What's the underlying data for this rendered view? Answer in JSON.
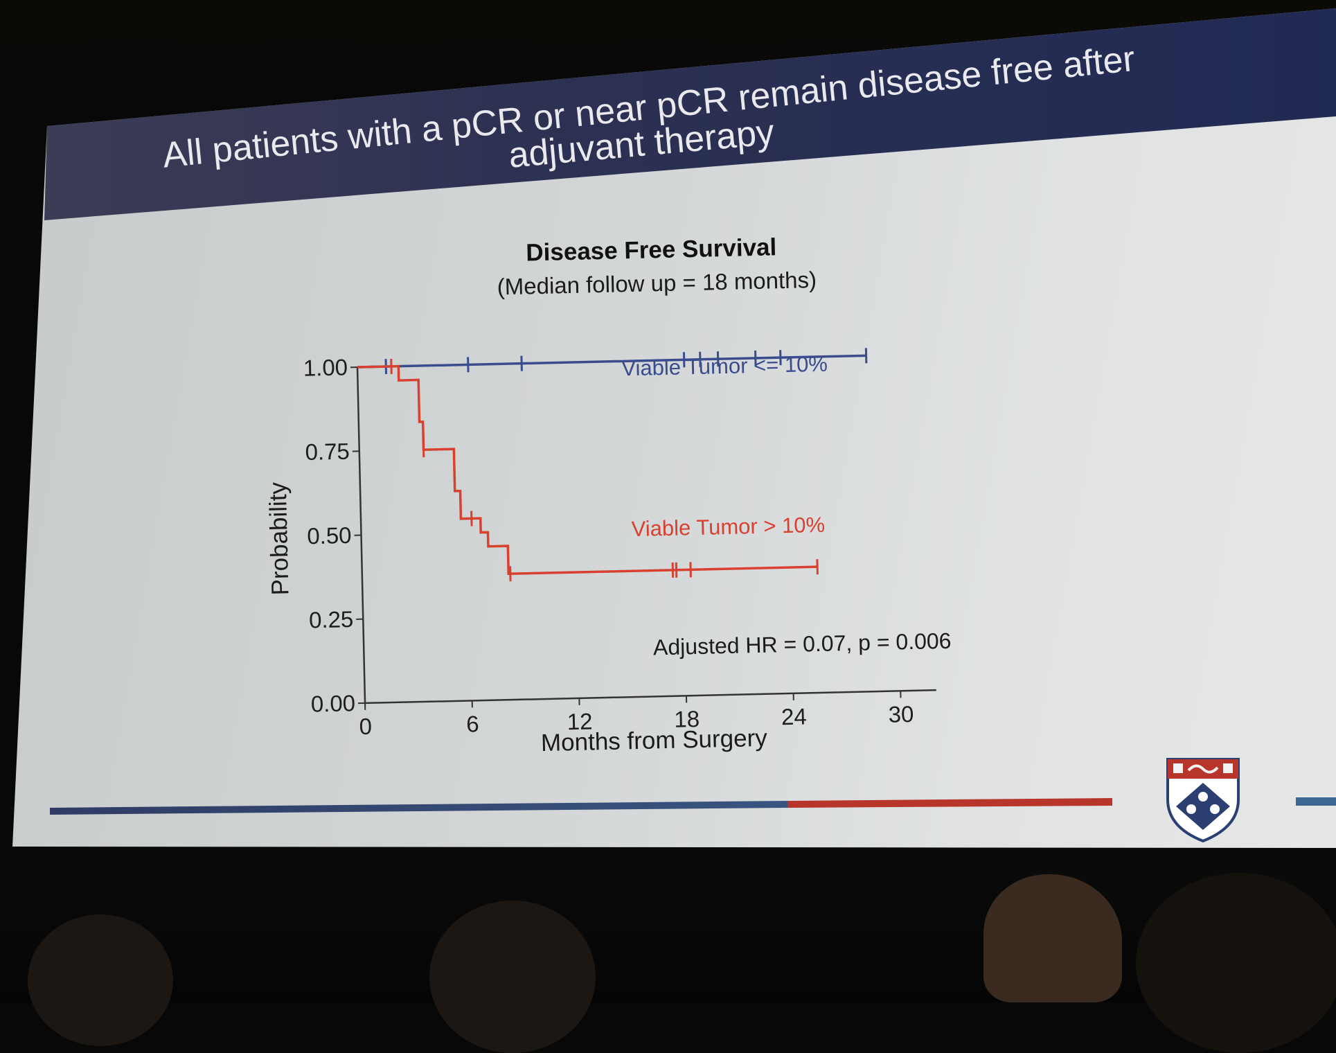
{
  "slide": {
    "title_line1": "All patients with a pCR or near pCR remain disease free after",
    "title_line2": "adjuvant therapy"
  },
  "colors": {
    "title_band": "#27305a",
    "series_low": "#3a4c8e",
    "series_high": "#d8402f",
    "accent_blue": "#3f6793",
    "accent_red": "#b8352c"
  },
  "logo": {
    "icon": "university-shield-icon"
  },
  "chart_data": {
    "type": "line",
    "subtype": "kaplan-meier",
    "title": "Disease Free Survival",
    "subtitle": "(Median follow up = 18 months)",
    "xlabel": "Months from Surgery",
    "ylabel": "Probability",
    "xlim": [
      0,
      32
    ],
    "ylim": [
      0,
      1
    ],
    "x_ticks": [
      0,
      6,
      12,
      18,
      24,
      30
    ],
    "x_tick_labels": [
      "0",
      "6",
      "12",
      "18",
      "24",
      "30"
    ],
    "y_ticks": [
      0,
      0.25,
      0.5,
      0.75,
      1
    ],
    "y_tick_labels": [
      "0.00",
      "0.25",
      "0.50",
      "0.75",
      "1.00"
    ],
    "grid": false,
    "annotation": "Adjusted HR = 0.07,  p = 0.006",
    "series": [
      {
        "name": "Viable Tumor <= 10%",
        "color": "#3a4c8e",
        "steps": [
          [
            0,
            1.0
          ],
          [
            28.5,
            1.0
          ]
        ],
        "censored": [
          1.6,
          6.2,
          9.2,
          18.3,
          19.2,
          20.2,
          22.3,
          23.7,
          28.5
        ]
      },
      {
        "name": "Viable Tumor > 10%",
        "color": "#d8402f",
        "steps": [
          [
            0,
            1.0
          ],
          [
            2.3,
            1.0
          ],
          [
            2.3,
            0.958
          ],
          [
            3.4,
            0.958
          ],
          [
            3.4,
            0.833
          ],
          [
            3.6,
            0.833
          ],
          [
            3.6,
            0.75
          ],
          [
            5.3,
            0.75
          ],
          [
            5.3,
            0.625
          ],
          [
            5.6,
            0.625
          ],
          [
            5.6,
            0.542
          ],
          [
            6.7,
            0.542
          ],
          [
            6.7,
            0.5
          ],
          [
            7.1,
            0.5
          ],
          [
            7.1,
            0.458
          ],
          [
            8.2,
            0.458
          ],
          [
            8.2,
            0.375
          ],
          [
            25.5,
            0.375
          ]
        ],
        "censored": [
          1.9,
          3.6,
          6.2,
          8.3,
          17.4,
          17.6,
          18.4,
          25.5
        ]
      }
    ]
  }
}
